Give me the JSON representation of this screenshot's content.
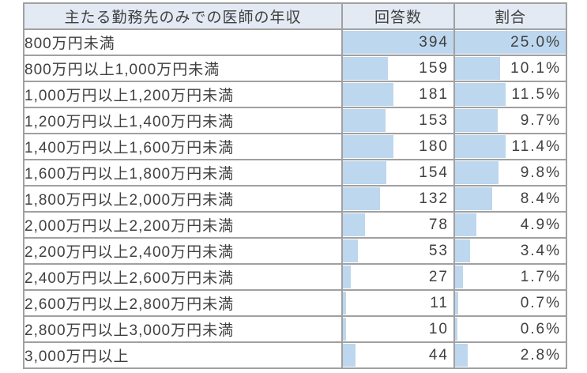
{
  "colors": {
    "bar": "#BDD7EE",
    "header_bg": "#E4EAF4",
    "border": "#A0A0A0",
    "text": "#404040",
    "page_bg": "#FFFFFF"
  },
  "table": {
    "columns": [
      "主たる勤務先のみでの医師の年収",
      "回答数",
      "割合"
    ],
    "max_count": 394,
    "max_pct": 25.0,
    "rows": [
      {
        "label": "800万円未満",
        "count": "394",
        "count_value": 394,
        "pct": "25.0%",
        "pct_value": 25.0
      },
      {
        "label": "800万円以上1,000万円未満",
        "count": "159",
        "count_value": 159,
        "pct": "10.1%",
        "pct_value": 10.1
      },
      {
        "label": "1,000万円以上1,200万円未満",
        "count": "181",
        "count_value": 181,
        "pct": "11.5%",
        "pct_value": 11.5
      },
      {
        "label": "1,200万円以上1,400万円未満",
        "count": "153",
        "count_value": 153,
        "pct": "9.7%",
        "pct_value": 9.7
      },
      {
        "label": "1,400万円以上1,600万円未満",
        "count": "180",
        "count_value": 180,
        "pct": "11.4%",
        "pct_value": 11.4
      },
      {
        "label": "1,600万円以上1,800万円未満",
        "count": "154",
        "count_value": 154,
        "pct": "9.8%",
        "pct_value": 9.8
      },
      {
        "label": "1,800万円以上2,000万円未満",
        "count": "132",
        "count_value": 132,
        "pct": "8.4%",
        "pct_value": 8.4
      },
      {
        "label": "2,000万円以上2,200万円未満",
        "count": "78",
        "count_value": 78,
        "pct": "4.9%",
        "pct_value": 4.9
      },
      {
        "label": "2,200万円以上2,400万円未満",
        "count": "53",
        "count_value": 53,
        "pct": "3.4%",
        "pct_value": 3.4
      },
      {
        "label": "2,400万円以上2,600万円未満",
        "count": "27",
        "count_value": 27,
        "pct": "1.7%",
        "pct_value": 1.7
      },
      {
        "label": "2,600万円以上2,800万円未満",
        "count": "11",
        "count_value": 11,
        "pct": "0.7%",
        "pct_value": 0.7
      },
      {
        "label": "2,800万円以上3,000万円未満",
        "count": "10",
        "count_value": 10,
        "pct": "0.6%",
        "pct_value": 0.6
      },
      {
        "label": "3,000万円以上",
        "count": "44",
        "count_value": 44,
        "pct": "2.8%",
        "pct_value": 2.8
      }
    ]
  },
  "chart_data": {
    "type": "table",
    "title": "主たる勤務先のみでの医師の年収",
    "columns": [
      "主たる勤務先のみでの医師の年収",
      "回答数",
      "割合"
    ],
    "categories": [
      "800万円未満",
      "800万円以上1,000万円未満",
      "1,000万円以上1,200万円未満",
      "1,200万円以上1,400万円未満",
      "1,400万円以上1,600万円未満",
      "1,600万円以上1,800万円未満",
      "1,800万円以上2,000万円未満",
      "2,000万円以上2,200万円未満",
      "2,200万円以上2,400万円未満",
      "2,400万円以上2,600万円未満",
      "2,600万円以上2,800万円未満",
      "2,800万円以上3,000万円未満",
      "3,000万円以上"
    ],
    "series": [
      {
        "name": "回答数",
        "values": [
          394,
          159,
          181,
          153,
          180,
          154,
          132,
          78,
          53,
          27,
          11,
          10,
          44
        ]
      },
      {
        "name": "割合",
        "unit": "%",
        "values": [
          25.0,
          10.1,
          11.5,
          9.7,
          11.4,
          9.8,
          8.4,
          4.9,
          3.4,
          1.7,
          0.7,
          0.6,
          2.8
        ]
      }
    ],
    "layout": {
      "bars": "in-cell data bars, left-aligned, width proportional to value",
      "bar_scale_max": {
        "回答数": 394,
        "割合": 25.0
      },
      "bar_color": "#BDD7EE"
    }
  }
}
